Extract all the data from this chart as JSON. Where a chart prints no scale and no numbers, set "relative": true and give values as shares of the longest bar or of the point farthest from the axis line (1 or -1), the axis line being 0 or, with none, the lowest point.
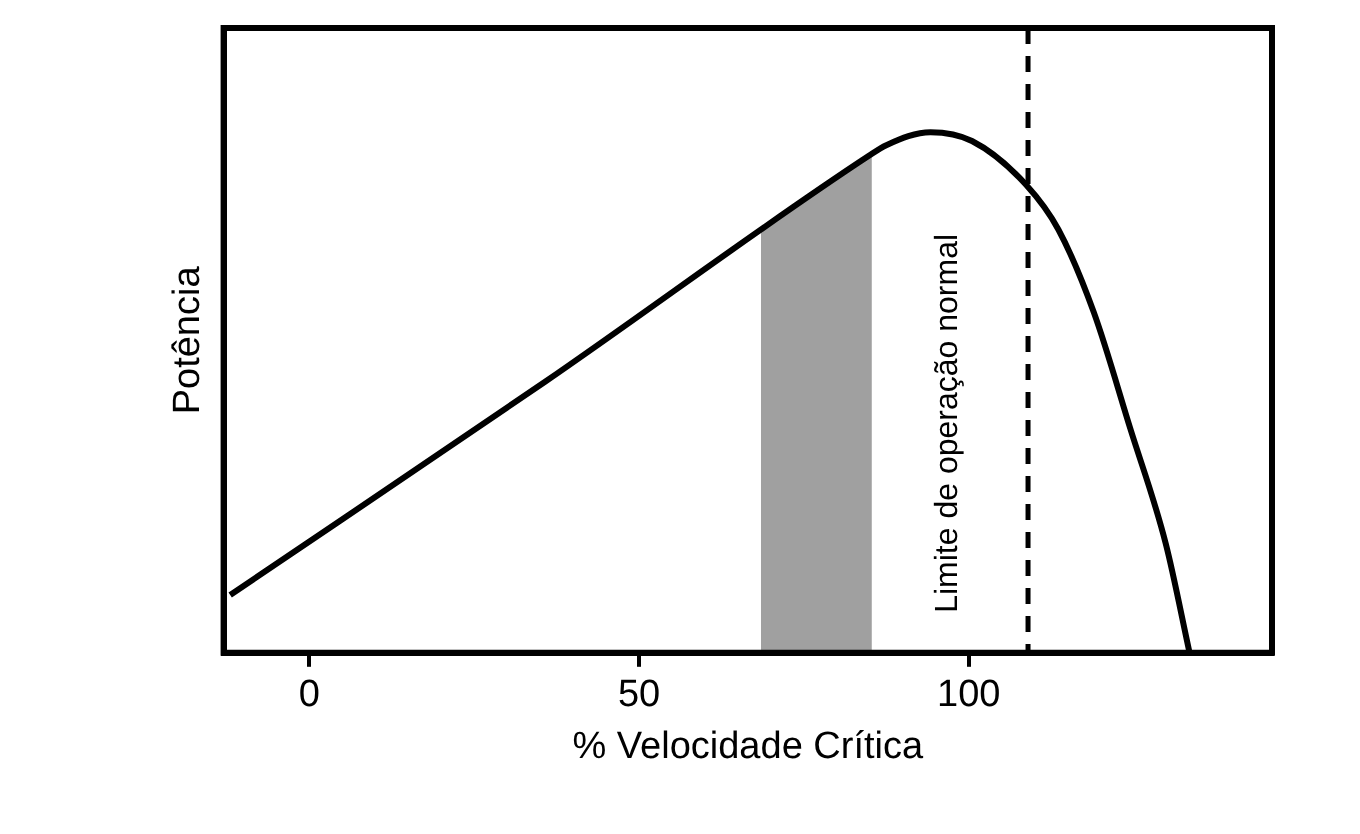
{
  "chart_data": {
    "type": "line",
    "xlabel": "% Velocidade Crítica",
    "ylabel": "Potência",
    "relative": true,
    "xlim": [
      -13,
      146
    ],
    "xticks": [
      0,
      50,
      100
    ],
    "series": [
      {
        "color": "#000000",
        "x": [
          -12,
          35.7,
          84.8,
          87.5,
          94.2,
          100.5,
          108.7,
          113.6,
          119,
          124.5,
          129.9,
          133.5
        ],
        "values": [
          0.111,
          0.52,
          0.954,
          0.975,
          1,
          0.983,
          0.899,
          0.813,
          0.653,
          0.431,
          0.209,
          0
        ]
      }
    ],
    "bands": [
      {
        "axis": "x",
        "from": 68.5,
        "to": 85.3,
        "color": "#a0a0a0"
      }
    ],
    "ref_lines": [
      {
        "axis": "x",
        "value": 109,
        "label": "Limite de operação normal",
        "color": "#000000",
        "line_style": "dashed"
      }
    ],
    "grid": false,
    "legend": false,
    "marker": "none",
    "line_style": "solid"
  }
}
